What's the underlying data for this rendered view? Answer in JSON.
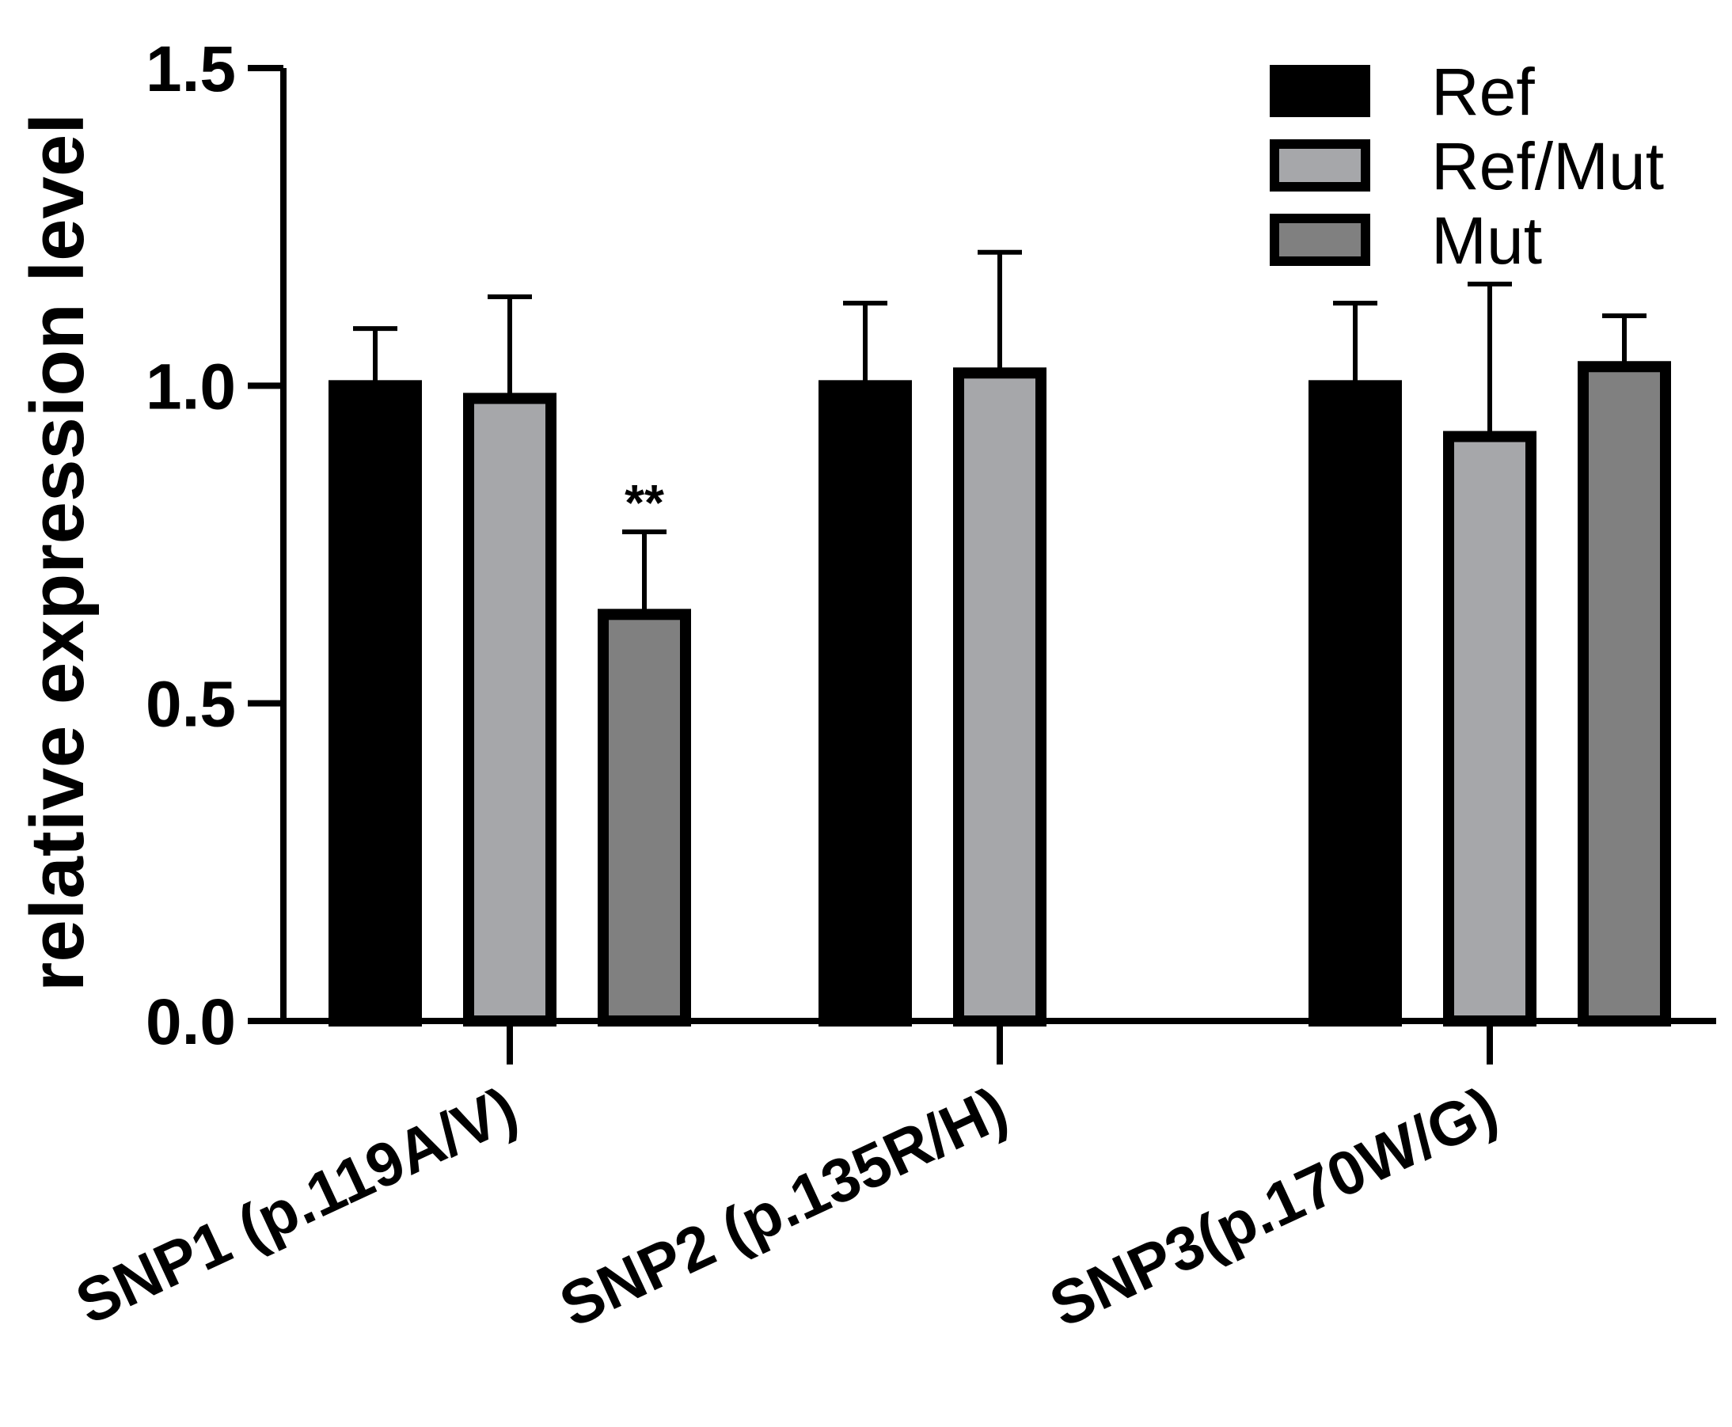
{
  "chart_data": {
    "type": "bar",
    "title": "",
    "xlabel": "",
    "ylabel": "relative expression level",
    "ylim": [
      0,
      1.5
    ],
    "yticks": [
      "0.0",
      "0.5",
      "1.0",
      "1.5"
    ],
    "categories": [
      "SNP1 (p.119A/V)",
      "SNP2 (p.135R/H)",
      "SNP3(p.170W/G)"
    ],
    "series": [
      {
        "name": "Ref",
        "color": "#000000",
        "values": [
          1.0,
          1.0,
          1.0
        ],
        "errors": [
          0.09,
          0.13,
          0.13
        ]
      },
      {
        "name": "Ref/Mut",
        "color": "#a6a7aa",
        "values": [
          0.98,
          1.02,
          0.92
        ],
        "errors": [
          0.16,
          0.19,
          0.24
        ]
      },
      {
        "name": "Mut",
        "color": "#808080",
        "values": [
          0.64,
          null,
          1.03
        ],
        "errors": [
          0.13,
          null,
          0.08
        ]
      }
    ],
    "annotations": [
      {
        "category": "SNP1 (p.119A/V)",
        "series": "Mut",
        "text": "**"
      }
    ],
    "legend": "top-right"
  }
}
